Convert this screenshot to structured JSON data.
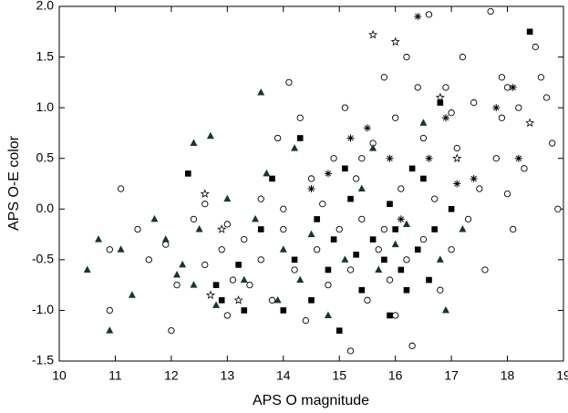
{
  "chart_data": {
    "type": "scatter",
    "x_label": "APS O magnitude",
    "y_label": "APS O-E color",
    "xlim": [
      10,
      19
    ],
    "xticks": [
      10,
      11,
      12,
      13,
      14,
      15,
      16,
      17,
      18,
      19
    ],
    "ylim": [
      -1.5,
      2.0
    ],
    "yticks": [
      {
        "value": -1.5,
        "label": "-1.5"
      },
      {
        "value": -1.0,
        "label": "-1.0"
      },
      {
        "value": -0.5,
        "label": "-0.5"
      },
      {
        "value": 0,
        "label": "0.0"
      },
      {
        "value": 0.5,
        "label": "0.5"
      },
      {
        "value": 1.0,
        "label": "1.0"
      },
      {
        "value": 1.5,
        "label": "1.5"
      },
      {
        "value": 2.0,
        "label": "2.0"
      }
    ],
    "series": [
      {
        "marker": "open-circle",
        "color": "#000000",
        "x": [
          10.9,
          11.1,
          10.9,
          11.4,
          11.6,
          11.9,
          12.1,
          12.0,
          12.4,
          12.6,
          12.6,
          12.9,
          13.1,
          13.0,
          13.3,
          13.4,
          13.6,
          13.6,
          13.8,
          13.9,
          14.0,
          14.1,
          14.2,
          14.3,
          14.4,
          14.5,
          14.6,
          14.7,
          14.8,
          14.9,
          15.0,
          15.1,
          15.2,
          15.2,
          15.3,
          15.4,
          15.5,
          15.6,
          15.7,
          15.8,
          15.8,
          15.9,
          16.0,
          16.1,
          16.2,
          16.2,
          16.3,
          16.4,
          16.5,
          16.5,
          16.6,
          16.7,
          16.8,
          16.9,
          17.0,
          17.1,
          17.2,
          17.3,
          17.4,
          17.5,
          17.6,
          17.7,
          17.8,
          17.9,
          18.0,
          18.1,
          18.2,
          18.3,
          18.5,
          18.6,
          18.7,
          18.8,
          18.9,
          17.9,
          16.0,
          14.0,
          13.0,
          15.4,
          17.0,
          18.0
        ],
        "values": [
          -0.4,
          0.2,
          -1.0,
          -0.2,
          -0.5,
          -0.35,
          -0.75,
          -1.2,
          -0.1,
          0.05,
          -0.55,
          -0.4,
          -0.7,
          -1.05,
          -0.3,
          -0.75,
          0.1,
          -0.5,
          -0.9,
          0.7,
          -0.2,
          1.25,
          -0.6,
          0.9,
          -1.1,
          0.3,
          -0.4,
          0.05,
          -0.75,
          0.5,
          -0.2,
          1.0,
          -0.6,
          -1.4,
          0.3,
          -0.1,
          -0.9,
          0.65,
          -0.4,
          1.3,
          -0.2,
          -0.7,
          0.9,
          0.2,
          -0.5,
          1.5,
          -1.35,
          1.2,
          -0.3,
          0.7,
          1.92,
          0.1,
          -0.8,
          1.2,
          -0.4,
          0.6,
          1.5,
          -0.1,
          1.05,
          0.2,
          -0.6,
          1.95,
          0.5,
          1.3,
          0.15,
          -0.2,
          1.0,
          0.4,
          1.6,
          1.3,
          1.1,
          0.65,
          0.0,
          0.9,
          -1.05,
          0.0,
          -0.15,
          0.5,
          0.95,
          1.2
        ]
      },
      {
        "marker": "square",
        "color": "#000000",
        "x": [
          12.3,
          12.9,
          13.3,
          13.8,
          14.0,
          14.2,
          14.3,
          14.6,
          14.8,
          15.0,
          15.2,
          15.4,
          15.6,
          15.8,
          15.9,
          16.0,
          16.1,
          16.3,
          16.4,
          16.6,
          16.8,
          17.0,
          18.4,
          13.6,
          14.5,
          15.3,
          16.2,
          16.7,
          13.2,
          14.9,
          15.1,
          12.8,
          15.9,
          16.5
        ],
        "values": [
          0.35,
          -0.9,
          -1.0,
          0.3,
          -1.0,
          -0.5,
          0.7,
          -0.1,
          -0.6,
          -1.2,
          0.1,
          -0.8,
          -0.3,
          -0.5,
          -1.05,
          -0.2,
          -0.6,
          0.4,
          -0.4,
          -0.7,
          1.05,
          0.0,
          1.75,
          -0.2,
          -0.9,
          -0.45,
          -0.8,
          -0.2,
          -0.55,
          -0.3,
          0.4,
          -0.75,
          0.05,
          0.3
        ]
      },
      {
        "marker": "triangle",
        "color": "#173828",
        "x": [
          10.5,
          10.9,
          11.1,
          11.3,
          10.7,
          11.7,
          11.9,
          12.1,
          12.4,
          12.7,
          12.2,
          12.4,
          12.8,
          13.6,
          13.3,
          13.7,
          13.9,
          14.2,
          14.5,
          14.8,
          15.1,
          15.4,
          15.7,
          16.0,
          16.2,
          16.5,
          16.8,
          17.2,
          14.0,
          13.5,
          12.5,
          15.6,
          16.9,
          14.3,
          13.0
        ],
        "values": [
          -0.6,
          -1.2,
          -0.4,
          -0.85,
          -0.3,
          -0.1,
          -0.3,
          -0.65,
          0.65,
          0.72,
          -0.55,
          -0.75,
          -0.95,
          1.15,
          -0.7,
          0.35,
          -0.9,
          0.6,
          -0.25,
          -1.05,
          -0.5,
          0.2,
          -0.6,
          -0.35,
          -0.15,
          0.85,
          -0.5,
          -0.2,
          -0.4,
          -0.1,
          -0.2,
          0.6,
          -1.0,
          -0.7,
          0.1
        ]
      },
      {
        "marker": "asterisk",
        "color": "#000000",
        "x": [
          16.4,
          18.2,
          17.1,
          15.5,
          16.9,
          17.8,
          14.5,
          16.1,
          17.4,
          15.9,
          16.6,
          18.1,
          15.2,
          14.8
        ],
        "values": [
          1.9,
          0.5,
          0.25,
          0.8,
          0.9,
          1.0,
          0.2,
          -0.1,
          0.3,
          0.5,
          0.5,
          1.2,
          0.7,
          0.35
        ]
      },
      {
        "marker": "star",
        "color": "#000000",
        "x": [
          15.6,
          16.0,
          12.6,
          12.9,
          12.7,
          13.2,
          17.1,
          18.4,
          16.8
        ],
        "values": [
          1.72,
          1.65,
          0.15,
          -0.2,
          -0.85,
          -0.9,
          0.5,
          0.85,
          1.1
        ]
      }
    ]
  }
}
